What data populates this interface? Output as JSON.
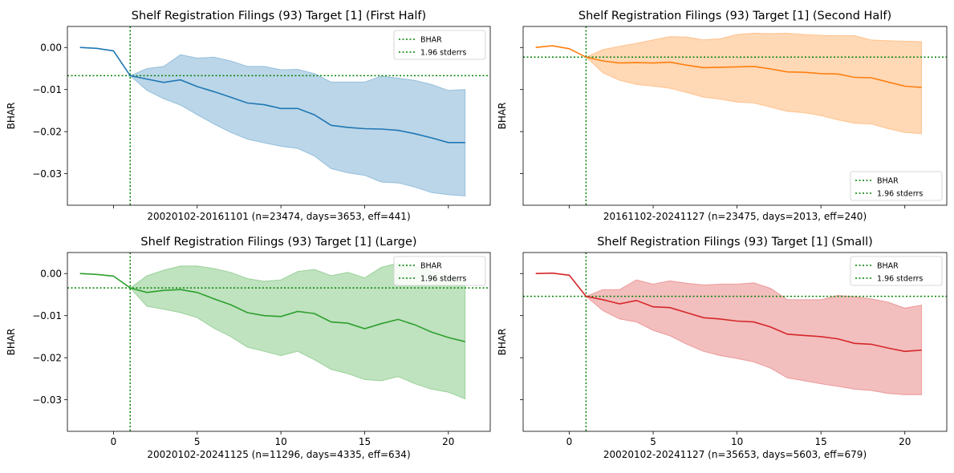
{
  "charts": [
    {
      "title": "Shelf Registration Filings (93) Target [1] (First Half)",
      "xlabel": "20020102-20161101 (n=23474, days=3653, eff=441)",
      "ylabel": "BHAR",
      "xtick_labels_visible": false,
      "ytick_labels_visible": true,
      "legend_position": "top-right",
      "color": "#1f77b4",
      "ref_x": 1,
      "ref_y": -0.0067,
      "x": [
        -2,
        -1,
        0,
        1,
        2,
        3,
        4,
        5,
        6,
        7,
        8,
        9,
        10,
        11,
        12,
        13,
        14,
        15,
        16,
        17,
        18,
        19,
        20,
        21
      ],
      "mean": [
        0.0,
        -0.0002,
        -0.0008,
        -0.0067,
        -0.0075,
        -0.0083,
        -0.0077,
        -0.0093,
        -0.0105,
        -0.0118,
        -0.0132,
        -0.0136,
        -0.0145,
        -0.0145,
        -0.016,
        -0.0185,
        -0.019,
        -0.0193,
        -0.0194,
        -0.0197,
        -0.0205,
        -0.0215,
        -0.0226,
        -0.0226
      ],
      "lower": [
        0.0,
        -0.0002,
        -0.0008,
        -0.0067,
        -0.0102,
        -0.0122,
        -0.0137,
        -0.016,
        -0.0182,
        -0.0202,
        -0.0218,
        -0.0227,
        -0.0235,
        -0.024,
        -0.0258,
        -0.0288,
        -0.0298,
        -0.0304,
        -0.032,
        -0.0322,
        -0.0332,
        -0.0345,
        -0.035,
        -0.0353
      ],
      "upper": [
        0.0,
        -0.0002,
        -0.0008,
        -0.0067,
        -0.005,
        -0.0045,
        -0.0017,
        -0.0025,
        -0.0023,
        -0.0032,
        -0.0045,
        -0.0045,
        -0.0053,
        -0.0052,
        -0.0062,
        -0.0082,
        -0.0082,
        -0.0082,
        -0.0068,
        -0.0073,
        -0.0078,
        -0.0088,
        -0.0102,
        -0.01
      ]
    },
    {
      "title": "Shelf Registration Filings (93) Target [1] (Second Half)",
      "xlabel": "20161102-20241127 (n=23475, days=2013, eff=240)",
      "ylabel": "BHAR",
      "xtick_labels_visible": false,
      "ytick_labels_visible": false,
      "legend_position": "bottom-right",
      "color": "#ff7f0e",
      "ref_x": 1,
      "ref_y": -0.0023,
      "x": [
        -2,
        -1,
        0,
        1,
        2,
        3,
        4,
        5,
        6,
        7,
        8,
        9,
        10,
        11,
        12,
        13,
        14,
        15,
        16,
        17,
        18,
        19,
        20,
        21
      ],
      "mean": [
        0.0,
        0.0004,
        -0.0003,
        -0.0023,
        -0.0032,
        -0.0037,
        -0.0036,
        -0.0037,
        -0.0035,
        -0.0042,
        -0.0048,
        -0.0047,
        -0.0046,
        -0.0045,
        -0.0051,
        -0.0058,
        -0.0059,
        -0.0062,
        -0.0063,
        -0.0071,
        -0.0072,
        -0.0082,
        -0.0092,
        -0.0095
      ],
      "lower": [
        0.0,
        0.0004,
        -0.0003,
        -0.0023,
        -0.006,
        -0.0078,
        -0.0088,
        -0.0092,
        -0.0097,
        -0.0107,
        -0.0118,
        -0.0123,
        -0.013,
        -0.0132,
        -0.0142,
        -0.0152,
        -0.0155,
        -0.0162,
        -0.0172,
        -0.018,
        -0.0182,
        -0.0193,
        -0.0202,
        -0.0205
      ],
      "upper": [
        0.0,
        0.0004,
        -0.0003,
        -0.0023,
        -0.0005,
        0.0003,
        0.001,
        0.0018,
        0.0026,
        0.0025,
        0.0018,
        0.0021,
        0.0031,
        0.0034,
        0.0033,
        0.0034,
        0.0031,
        0.0029,
        0.0028,
        0.0028,
        0.0018,
        0.0016,
        0.0015,
        0.0014
      ]
    },
    {
      "title": "Shelf Registration Filings (93) Target [1] (Large)",
      "xlabel": "20020102-20241125 (n=11296, days=4335, eff=634)",
      "ylabel": "BHAR",
      "xtick_labels_visible": true,
      "ytick_labels_visible": true,
      "legend_position": "top-right",
      "color": "#2ca02c",
      "ref_x": 1,
      "ref_y": -0.0034,
      "x": [
        -2,
        -1,
        0,
        1,
        2,
        3,
        4,
        5,
        6,
        7,
        8,
        9,
        10,
        11,
        12,
        13,
        14,
        15,
        16,
        17,
        18,
        19,
        20,
        21
      ],
      "mean": [
        0.0,
        -0.0002,
        -0.0006,
        -0.0034,
        -0.0045,
        -0.004,
        -0.0038,
        -0.0045,
        -0.006,
        -0.0074,
        -0.0093,
        -0.01,
        -0.0102,
        -0.009,
        -0.0095,
        -0.0115,
        -0.0118,
        -0.0131,
        -0.0119,
        -0.0109,
        -0.0122,
        -0.0139,
        -0.0152,
        -0.0162
      ],
      "lower": [
        0.0,
        -0.0002,
        -0.0006,
        -0.0034,
        -0.0078,
        -0.0085,
        -0.0093,
        -0.0105,
        -0.013,
        -0.015,
        -0.0175,
        -0.0185,
        -0.0195,
        -0.0185,
        -0.0205,
        -0.0228,
        -0.0238,
        -0.0252,
        -0.0255,
        -0.0245,
        -0.0262,
        -0.0275,
        -0.0282,
        -0.0298
      ],
      "upper": [
        0.0,
        -0.0002,
        -0.0006,
        -0.0034,
        -0.0005,
        0.0008,
        0.0018,
        0.0018,
        0.0012,
        0.0003,
        -0.0012,
        -0.0018,
        -0.0015,
        0.0005,
        0.001,
        -0.0005,
        0.0003,
        -0.001,
        0.0015,
        0.0025,
        0.0018,
        0.0005,
        -0.0005,
        -0.002
      ]
    },
    {
      "title": "Shelf Registration Filings (93) Target [1] (Small)",
      "xlabel": "20020102-20241127 (n=35653, days=5603, eff=679)",
      "ylabel": "BHAR",
      "xtick_labels_visible": true,
      "ytick_labels_visible": false,
      "legend_position": "top-right",
      "color": "#d62728",
      "ref_x": 1,
      "ref_y": -0.0054,
      "x": [
        -2,
        -1,
        0,
        1,
        2,
        3,
        4,
        5,
        6,
        7,
        8,
        9,
        10,
        11,
        12,
        13,
        14,
        15,
        16,
        17,
        18,
        19,
        20,
        21
      ],
      "mean": [
        0.0,
        0.0001,
        -0.0004,
        -0.0054,
        -0.0062,
        -0.0072,
        -0.0064,
        -0.0079,
        -0.0081,
        -0.0093,
        -0.0105,
        -0.0108,
        -0.0113,
        -0.0115,
        -0.0127,
        -0.0144,
        -0.0147,
        -0.015,
        -0.0155,
        -0.0166,
        -0.0168,
        -0.0177,
        -0.0185,
        -0.0182
      ],
      "lower": [
        0.0,
        0.0001,
        -0.0004,
        -0.0054,
        -0.0088,
        -0.0108,
        -0.0115,
        -0.0135,
        -0.0148,
        -0.0168,
        -0.0185,
        -0.0195,
        -0.0202,
        -0.021,
        -0.0225,
        -0.0248,
        -0.0255,
        -0.0262,
        -0.0268,
        -0.0275,
        -0.0278,
        -0.0285,
        -0.0288,
        -0.0288
      ],
      "upper": [
        0.0,
        0.0001,
        -0.0004,
        -0.0054,
        -0.0038,
        -0.0038,
        -0.0015,
        -0.0025,
        -0.0017,
        -0.0023,
        -0.0027,
        -0.0025,
        -0.0025,
        -0.0022,
        -0.0035,
        -0.0062,
        -0.0062,
        -0.0062,
        -0.0052,
        -0.0055,
        -0.006,
        -0.0068,
        -0.0082,
        -0.0075
      ]
    }
  ],
  "shared_axes": {
    "xlim": [
      -2.75,
      22.5
    ],
    "ylim": [
      -0.0375,
      0.005
    ],
    "xticks": [
      0,
      5,
      10,
      15,
      20
    ],
    "yticks": [
      0.0,
      -0.01,
      -0.02,
      -0.03
    ],
    "ytick_labels": [
      "0.00",
      "−0.01",
      "−0.02",
      "−0.03"
    ]
  },
  "legend": {
    "entries": [
      "BHAR",
      "1.96 stderrs"
    ],
    "line_color": "#008000"
  },
  "chart_data": [
    {
      "type": "line",
      "title": "Shelf Registration Filings (93) Target [1] (First Half)",
      "xlabel": "20020102-20161101 (n=23474, days=3653, eff=441)",
      "ylabel": "BHAR",
      "ylim": [
        -0.0375,
        0.005
      ],
      "series": [
        {
          "name": "BHAR"
        },
        {
          "name": "1.96 stderrs"
        }
      ]
    },
    {
      "type": "line",
      "title": "Shelf Registration Filings (93) Target [1] (Second Half)",
      "xlabel": "20161102-20241127 (n=23475, days=2013, eff=240)",
      "ylabel": "BHAR",
      "ylim": [
        -0.0375,
        0.005
      ],
      "series": [
        {
          "name": "BHAR"
        },
        {
          "name": "1.96 stderrs"
        }
      ]
    },
    {
      "type": "line",
      "title": "Shelf Registration Filings (93) Target [1] (Large)",
      "xlabel": "20020102-20241125 (n=11296, days=4335, eff=634)",
      "ylabel": "BHAR",
      "ylim": [
        -0.0375,
        0.005
      ],
      "series": [
        {
          "name": "BHAR"
        },
        {
          "name": "1.96 stderrs"
        }
      ]
    },
    {
      "type": "line",
      "title": "Shelf Registration Filings (93) Target [1] (Small)",
      "xlabel": "20020102-20241127 (n=35653, days=5603, eff=679)",
      "ylabel": "BHAR",
      "ylim": [
        -0.0375,
        0.005
      ],
      "series": [
        {
          "name": "BHAR"
        },
        {
          "name": "1.96 stderrs"
        }
      ]
    }
  ]
}
